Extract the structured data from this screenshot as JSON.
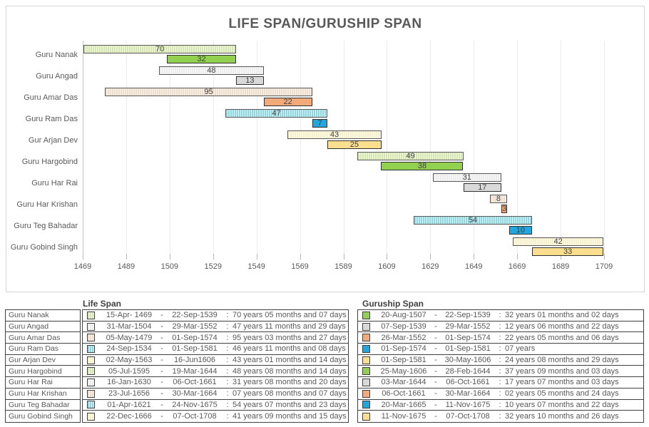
{
  "title": "LIFE SPAN/GURUSHIP SPAN",
  "chart_data": {
    "type": "bar",
    "orientation": "horizontal",
    "title": "LIFE SPAN/GURUSHIP SPAN",
    "xlabel": "",
    "ylabel": "",
    "grid": true,
    "x_axis": {
      "min": 1469,
      "max": 1709,
      "tick_step": 20,
      "ticks": [
        1469,
        1489,
        1509,
        1529,
        1549,
        1569,
        1589,
        1609,
        1629,
        1649,
        1669,
        1689,
        1709
      ]
    },
    "categories": [
      "Guru Nanak",
      "Guru Angad",
      "Guru Amar Das",
      "Guru Ram Das",
      "Gur Arjan Dev",
      "Guru Hargobind",
      "Guru Har Rai",
      "Guru Har Krishan",
      "Guru Teg Bahadar",
      "Guru Gobind Singh"
    ],
    "series": [
      {
        "name": "Life Span",
        "style": "hatched",
        "bars": [
          {
            "start_year": 1469.29,
            "end_year": 1539.73,
            "label": "70"
          },
          {
            "start_year": 1504.25,
            "end_year": 1552.24,
            "label": "48"
          },
          {
            "start_year": 1479.34,
            "end_year": 1574.67,
            "label": "95"
          },
          {
            "start_year": 1534.73,
            "end_year": 1581.67,
            "label": "47"
          },
          {
            "start_year": 1563.33,
            "end_year": 1606.46,
            "label": "43"
          },
          {
            "start_year": 1595.5,
            "end_year": 1644.21,
            "label": "49"
          },
          {
            "start_year": 1630.04,
            "end_year": 1661.76,
            "label": "31"
          },
          {
            "start_year": 1656.55,
            "end_year": 1664.24,
            "label": "8"
          },
          {
            "start_year": 1621.25,
            "end_year": 1675.9,
            "label": "54"
          },
          {
            "start_year": 1666.97,
            "end_year": 1708.77,
            "label": "42"
          }
        ]
      },
      {
        "name": "Guruship Span",
        "style": "solid",
        "bars": [
          {
            "start_year": 1507.64,
            "end_year": 1539.73,
            "label": "32"
          },
          {
            "start_year": 1539.68,
            "end_year": 1552.24,
            "label": "13"
          },
          {
            "start_year": 1552.23,
            "end_year": 1574.67,
            "label": "22"
          },
          {
            "start_year": 1574.67,
            "end_year": 1581.67,
            "label": "7"
          },
          {
            "start_year": 1581.67,
            "end_year": 1606.41,
            "label": "25"
          },
          {
            "start_year": 1606.39,
            "end_year": 1644.16,
            "label": "38"
          },
          {
            "start_year": 1644.17,
            "end_year": 1661.76,
            "label": "17"
          },
          {
            "start_year": 1661.76,
            "end_year": 1664.24,
            "label": "3"
          },
          {
            "start_year": 1665.21,
            "end_year": 1675.86,
            "label": "10"
          },
          {
            "start_year": 1675.86,
            "end_year": 1708.77,
            "label": "33"
          }
        ]
      }
    ],
    "colors": {
      "life": [
        "#d5e7ae",
        "#ececec",
        "#efdcca",
        "#8ed8e4",
        "#f8f0c9"
      ],
      "guruship": [
        "#92d050",
        "#d9d9d9",
        "#f2aa78",
        "#21a7e0",
        "#fbdf8e"
      ]
    }
  },
  "tables": {
    "names": [
      "Guru Nanak",
      "Guru Angad",
      "Guru Amar Das",
      "Guru Ram Das",
      "Gur Arjan Dev",
      "Guru Hargobind",
      "Guru Har Rai",
      "Guru Har Krishan",
      "Guru Teg Bahadar",
      "Guru Gobind Singh"
    ],
    "life_span": {
      "header": "Life Span",
      "rows": [
        {
          "start": "15-Apr- 1469",
          "end": "22-Sep-1539",
          "duration": "70 years 05 months and 07 days"
        },
        {
          "start": "31-Mar-1504",
          "end": "29-Mar-1552",
          "duration": "47 years 11 months and 29 days"
        },
        {
          "start": "05-May-1479",
          "end": "01-Sep-1574",
          "duration": "95 years 03 months and 27 days"
        },
        {
          "start": "24-Sep-1534",
          "end": "01-Sep-1581",
          "duration": "46 years 11 months and 08 days"
        },
        {
          "start": "02-May-1563",
          "end": "16-Jun1606",
          "duration": "43 years 01 months and 14 days"
        },
        {
          "start": "05-Jul-1595",
          "end": "19-Mar-1644",
          "duration": "48 years 08 months and 14 days"
        },
        {
          "start": "16-Jan-1630",
          "end": "06-Oct-1661",
          "duration": "31 years 08 months and 20 days"
        },
        {
          "start": "23-Jul-1656",
          "end": "30-Mar-1664",
          "duration": "07 years 08 months and 07 days"
        },
        {
          "start": "01-Apr-1621",
          "end": "24-Nov-1675",
          "duration": "54 years 07 months and 23 days"
        },
        {
          "start": "22-Dec-1666",
          "end": "07-Oct-1708",
          "duration": "41 years 09 months and 15 days"
        }
      ]
    },
    "guruship_span": {
      "header": "Guruship Span",
      "rows": [
        {
          "start": "20-Aug-1507",
          "end": "22-Sep-1539",
          "duration": "32 years 01 months and 02 days"
        },
        {
          "start": "07-Sep-1539",
          "end": "29-Mar-1552",
          "duration": "12 years 06 months and 22 days"
        },
        {
          "start": "26-Mar-1552",
          "end": "01-Sep-1574",
          "duration": "22 years 05 months and 06 days"
        },
        {
          "start": "01-Sep-1574",
          "end": "01-Sep-1581",
          "duration": "07 years"
        },
        {
          "start": "01-Sep-1581",
          "end": "30-May-1606",
          "duration": "24 years 08 months and 29 days"
        },
        {
          "start": "25-May-1606",
          "end": "28-Feb-1644",
          "duration": "37 years 09 months and 03 days"
        },
        {
          "start": "03-Mar-1644",
          "end": "06-Oct-1661",
          "duration": "17 years 07 months and 03 days"
        },
        {
          "start": "06-Oct-1661",
          "end": "30-Mar-1664",
          "duration": "02 years 05 months and 24 days"
        },
        {
          "start": "20-Mar-1665",
          "end": "11-Nov-1675",
          "duration": "10 years 07 months and 22 days"
        },
        {
          "start": "11-Nov-1675",
          "end": "07-Oct-1708",
          "duration": "32 years 10 months and 26 days"
        }
      ]
    }
  }
}
